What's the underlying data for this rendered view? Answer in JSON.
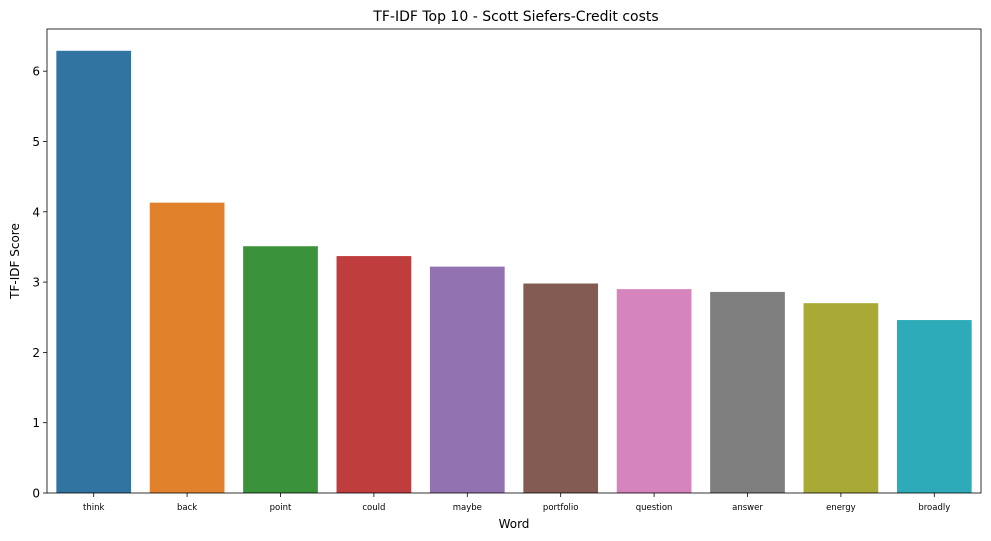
{
  "chart_data": {
    "type": "bar",
    "title": "TF-IDF Top 10 - Scott Siefers-Credit costs",
    "xlabel": "Word",
    "ylabel": "TF-IDF Score",
    "categories": [
      "think",
      "back",
      "point",
      "could",
      "maybe",
      "portfolio",
      "question",
      "answer",
      "energy",
      "broadly"
    ],
    "values": [
      6.29,
      4.13,
      3.51,
      3.37,
      3.22,
      2.98,
      2.9,
      2.86,
      2.7,
      2.46
    ],
    "colors": [
      "#3274a1",
      "#e1812c",
      "#3a923a",
      "#c03d3e",
      "#9372b2",
      "#845b53",
      "#d684bd",
      "#7f7f7f",
      "#a9aa35",
      "#2eabb8"
    ],
    "yticks": [
      0,
      1,
      2,
      3,
      4,
      5,
      6
    ],
    "ylim": [
      0,
      6.6
    ],
    "grid": false,
    "legend": "none"
  }
}
